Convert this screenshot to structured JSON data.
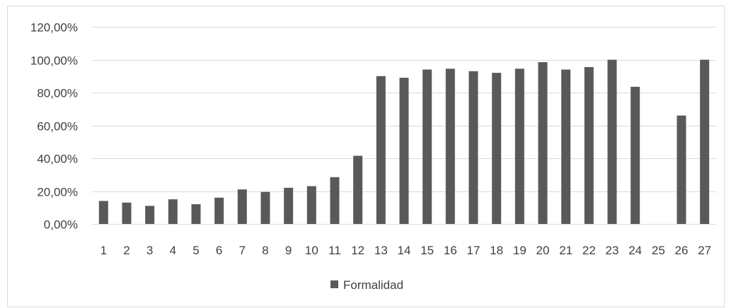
{
  "chart_data": {
    "type": "bar",
    "categories": [
      "1",
      "2",
      "3",
      "4",
      "5",
      "6",
      "7",
      "8",
      "9",
      "10",
      "11",
      "12",
      "13",
      "14",
      "15",
      "16",
      "17",
      "18",
      "19",
      "20",
      "21",
      "22",
      "23",
      "24",
      "25",
      "26",
      "27"
    ],
    "series": [
      {
        "name": "Formalidad",
        "values": [
          0.14,
          0.13,
          0.11,
          0.15,
          0.12,
          0.16,
          0.21,
          0.195,
          0.22,
          0.23,
          0.285,
          0.415,
          0.9,
          0.89,
          0.94,
          0.945,
          0.93,
          0.92,
          0.945,
          0.985,
          0.94,
          0.955,
          1.0,
          0.835,
          0.0,
          0.66,
          1.0
        ],
        "color": "#595959"
      }
    ],
    "ylim": [
      0,
      1.2
    ],
    "yticks": [
      "0,00%",
      "20,00%",
      "40,00%",
      "60,00%",
      "80,00%",
      "100,00%",
      "120,00%"
    ],
    "ytick_values": [
      0,
      0.2,
      0.4,
      0.6,
      0.8,
      1.0,
      1.2
    ],
    "grid": true,
    "gridline_color": "#d9d9d9",
    "legend": {
      "position": "bottom",
      "label": "Formalidad"
    },
    "title": "",
    "xlabel": "",
    "ylabel": ""
  }
}
